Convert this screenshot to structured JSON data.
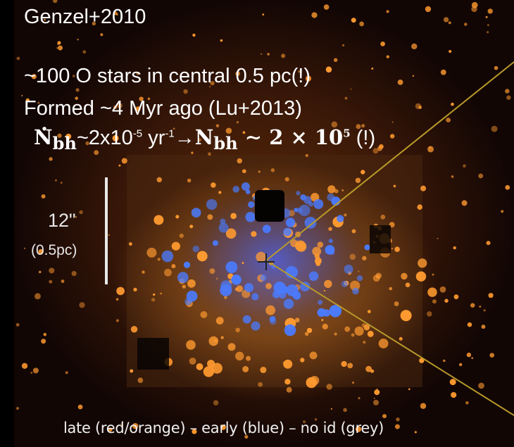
{
  "credit": "Genzel+2010",
  "line1": "~100 O stars in central 0.5 pc(!)",
  "line2": "Formed ~4 Myr ago (Lu+2013)",
  "line3": {
    "rate_symbol": "N",
    "rate_sub": "bh",
    "rate_value": "~2x10",
    "rate_exp": "-5",
    "rate_unit": " yr",
    "rate_unit_exp": "-1",
    "arrow": "→",
    "count_symbol": "N",
    "count_sub": "bh",
    "count_value": " ∼ 2 × 10",
    "count_exp": "5",
    "exclaim": " (!)"
  },
  "scale_bar": {
    "arcsec": "12\"",
    "pc": "(0.5pc)"
  },
  "legend": "late (red/orange) – early (blue) – no id (grey)",
  "colors": {
    "background": "#000000",
    "late_type": "#ff9a30",
    "early_type": "#4a7bff",
    "guide_lines": "#b89a2a"
  }
}
